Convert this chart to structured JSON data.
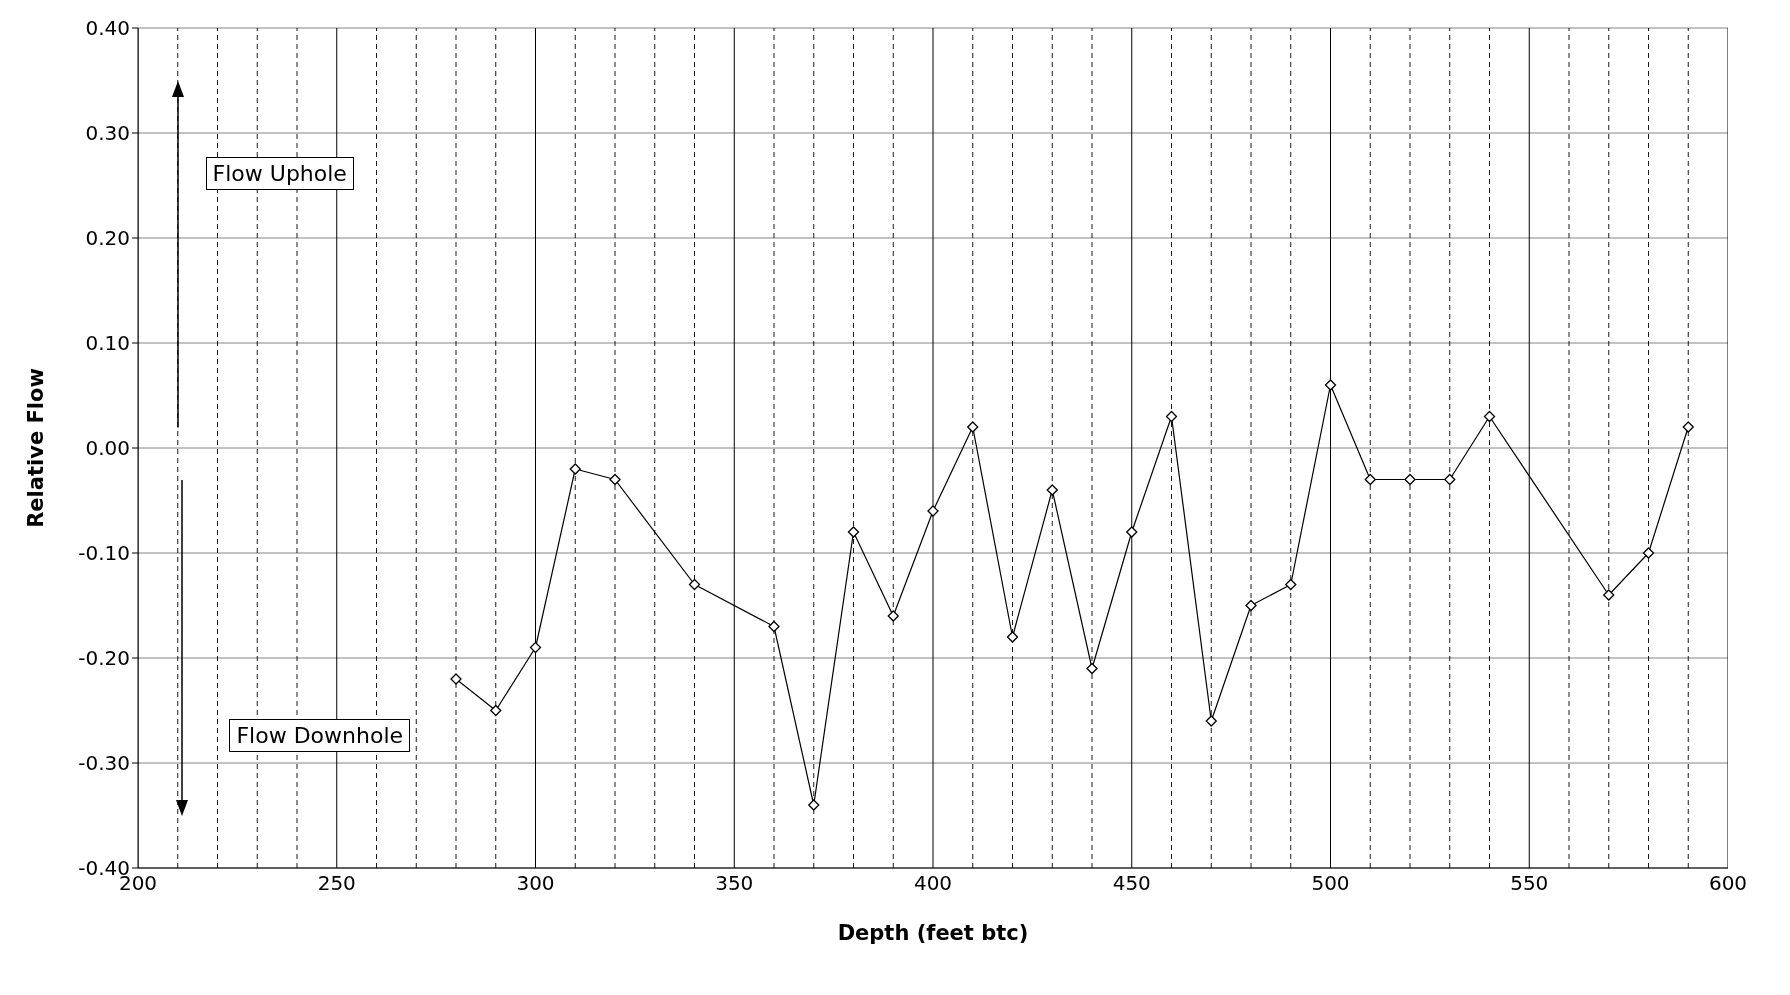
{
  "chart_data": {
    "type": "line",
    "xlabel": "Depth (feet btc)",
    "ylabel": "Relative Flow",
    "x": [
      280,
      290,
      300,
      310,
      320,
      340,
      360,
      370,
      380,
      390,
      400,
      410,
      420,
      430,
      440,
      450,
      460,
      470,
      480,
      490,
      500,
      510,
      520,
      530,
      540,
      570,
      580,
      590
    ],
    "series": [
      {
        "color": "#000000",
        "values": [
          -0.22,
          -0.25,
          -0.19,
          -0.02,
          -0.03,
          -0.13,
          -0.17,
          -0.34,
          -0.08,
          -0.16,
          -0.06,
          0.02,
          -0.18,
          -0.04,
          -0.21,
          -0.08,
          0.03,
          -0.26,
          -0.15,
          -0.13,
          0.06,
          -0.03,
          -0.03,
          -0.03,
          0.03,
          -0.14,
          -0.1,
          0.02
        ]
      }
    ],
    "xlim": [
      200,
      600
    ],
    "xticks": [
      200,
      {
        "value": 210,
        "label": null
      },
      {
        "value": 220,
        "label": null
      },
      {
        "value": 230,
        "label": null
      },
      {
        "value": 240,
        "label": null
      },
      250,
      {
        "value": 260,
        "label": null
      },
      {
        "value": 270,
        "label": null
      },
      {
        "value": 280,
        "label": null
      },
      {
        "value": 290,
        "label": null
      },
      300,
      {
        "value": 310,
        "label": null
      },
      {
        "value": 320,
        "label": null
      },
      {
        "value": 330,
        "label": null
      },
      {
        "value": 340,
        "label": null
      },
      350,
      {
        "value": 360,
        "label": null
      },
      {
        "value": 370,
        "label": null
      },
      {
        "value": 380,
        "label": null
      },
      {
        "value": 390,
        "label": null
      },
      400,
      {
        "value": 410,
        "label": null
      },
      {
        "value": 420,
        "label": null
      },
      {
        "value": 430,
        "label": null
      },
      {
        "value": 440,
        "label": null
      },
      450,
      {
        "value": 460,
        "label": null
      },
      {
        "value": 470,
        "label": null
      },
      {
        "value": 480,
        "label": null
      },
      {
        "value": 490,
        "label": null
      },
      500,
      {
        "value": 510,
        "label": null
      },
      {
        "value": 520,
        "label": null
      },
      {
        "value": 530,
        "label": null
      },
      {
        "value": 540,
        "label": null
      },
      550,
      {
        "value": 560,
        "label": null
      },
      {
        "value": 570,
        "label": null
      },
      {
        "value": 580,
        "label": null
      },
      {
        "value": 590,
        "label": null
      },
      600
    ],
    "ylim": [
      -0.4,
      0.4
    ],
    "yticks": [
      {
        "value": -0.4,
        "label": "-0.40"
      },
      {
        "value": -0.3,
        "label": "-0.30"
      },
      {
        "value": -0.2,
        "label": "-0.20"
      },
      {
        "value": -0.1,
        "label": "-0.10"
      },
      {
        "value": 0,
        "label": "0.00"
      },
      {
        "value": 0.1,
        "label": "0.10"
      },
      {
        "value": 0.2,
        "label": "0.20"
      },
      {
        "value": 0.3,
        "label": "0.30"
      },
      {
        "value": 0.4,
        "label": "0.40"
      }
    ],
    "grid": true,
    "marker": "diamond",
    "line_style": "solid",
    "annotations": [
      "Flow Uphole",
      "Flow Downhole"
    ]
  }
}
